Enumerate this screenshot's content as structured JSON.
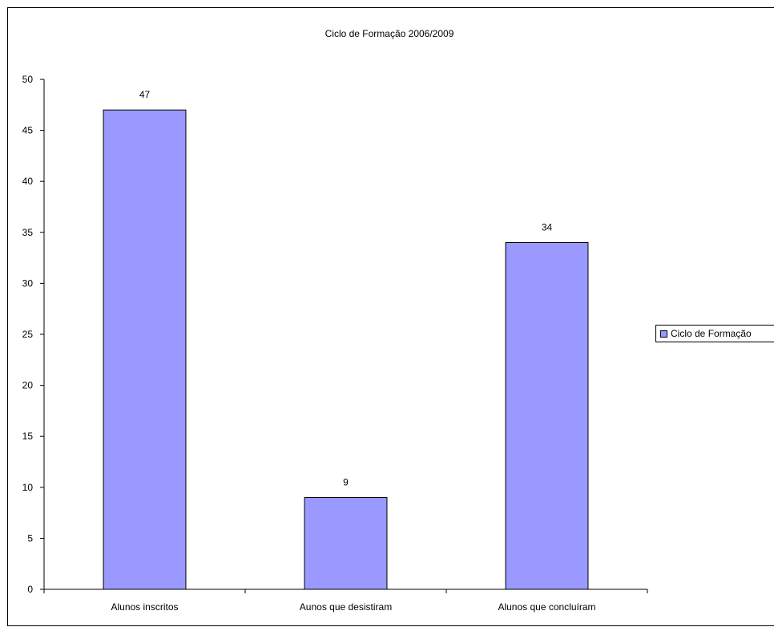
{
  "chart_data": {
    "type": "bar",
    "title": "Ciclo de Formação 2006/2009",
    "categories": [
      "Alunos inscritos",
      "Aunos que desistiram",
      "Alunos que concluíram"
    ],
    "series": [
      {
        "name": "Ciclo de Formação",
        "values": [
          47,
          9,
          34
        ]
      }
    ],
    "data_labels": [
      "47",
      "9",
      "34"
    ],
    "y_ticks": [
      "0",
      "5",
      "10",
      "15",
      "20",
      "25",
      "30",
      "35",
      "40",
      "45",
      "50"
    ],
    "ylim": [
      0,
      50
    ],
    "xlabel": "",
    "ylabel": "",
    "grid": false,
    "legend_position": "right",
    "legend_label": "Ciclo de Formação",
    "bar_color": "#9999ff"
  }
}
